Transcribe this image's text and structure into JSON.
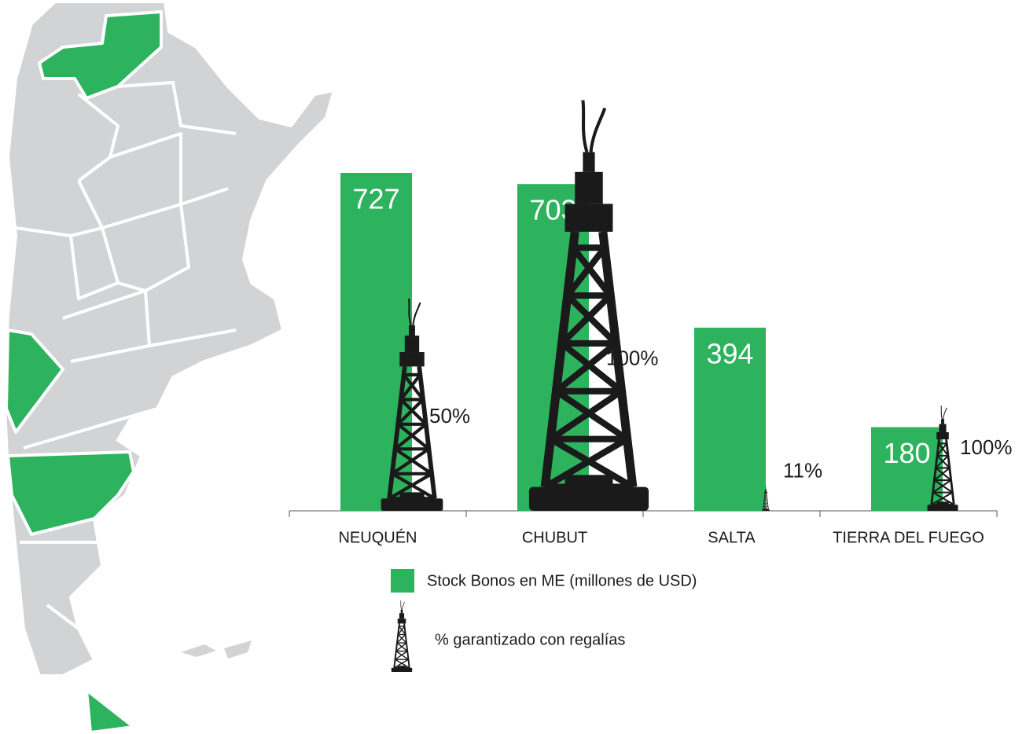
{
  "chart_data": {
    "type": "bar",
    "categories": [
      "NEUQUÉN",
      "CHUBUT",
      "SALTA",
      "TIERRA DEL FUEGO"
    ],
    "series": [
      {
        "name": "Stock Bonos en ME (millones de USD)",
        "color": "#2db35d",
        "values": [
          727,
          703,
          394,
          180
        ]
      },
      {
        "name": "% garantizado con regalías",
        "color": "#1a1a1a",
        "values": [
          50,
          100,
          11,
          100
        ],
        "value_labels": [
          "50%",
          "100%",
          "11%",
          "100%"
        ]
      }
    ]
  }
}
